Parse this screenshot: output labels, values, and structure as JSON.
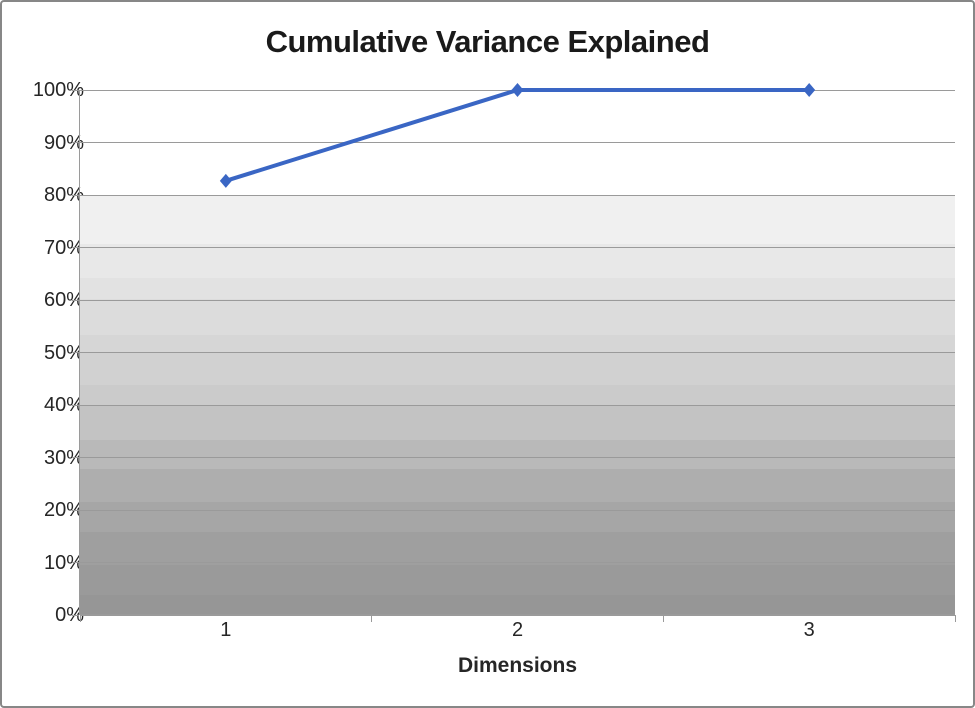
{
  "chart_data": {
    "type": "line",
    "title": "Cumulative Variance Explained",
    "xlabel": "Dimensions",
    "ylabel": "",
    "categories": [
      "1",
      "2",
      "3"
    ],
    "series": [
      {
        "name": "Cumulative Variance Explained",
        "values": [
          82.7,
          100,
          100
        ]
      }
    ],
    "ylim": [
      0,
      100
    ],
    "y_tick_labels": [
      "0%",
      "10%",
      "20%",
      "30%",
      "40%",
      "50%",
      "60%",
      "70%",
      "80%",
      "90%",
      "100%"
    ],
    "grid": "horizontal gridlines on",
    "legend_position": "none",
    "marker": "diamond"
  },
  "style": {
    "line_color": "#3a66c4",
    "marker_color": "#3a66c4",
    "gridline_color": "#9a9a9a",
    "axis_color": "#9a9a9a",
    "text_color": "#262626",
    "title_color": "#1a1a1a",
    "frame_border_color": "#878787",
    "background_color": "#ffffff",
    "band_area_top_value": 80,
    "plot_band_colors": [
      "#f0f0f0",
      "#e8e8e8",
      "#e2e2e2",
      "#dcdcdc",
      "#d6d6d6",
      "#d1d1d1",
      "#cbcbcb",
      "#c3c3c3",
      "#b9b9b9",
      "#aeaeae",
      "#a6a6a6",
      "#9f9f9f",
      "#9a9a9a",
      "#969696"
    ],
    "plot_band_stops": [
      0,
      0.117,
      0.198,
      0.248,
      0.333,
      0.374,
      0.452,
      0.5,
      0.583,
      0.652,
      0.731,
      0.802,
      0.881,
      0.952,
      1
    ]
  }
}
